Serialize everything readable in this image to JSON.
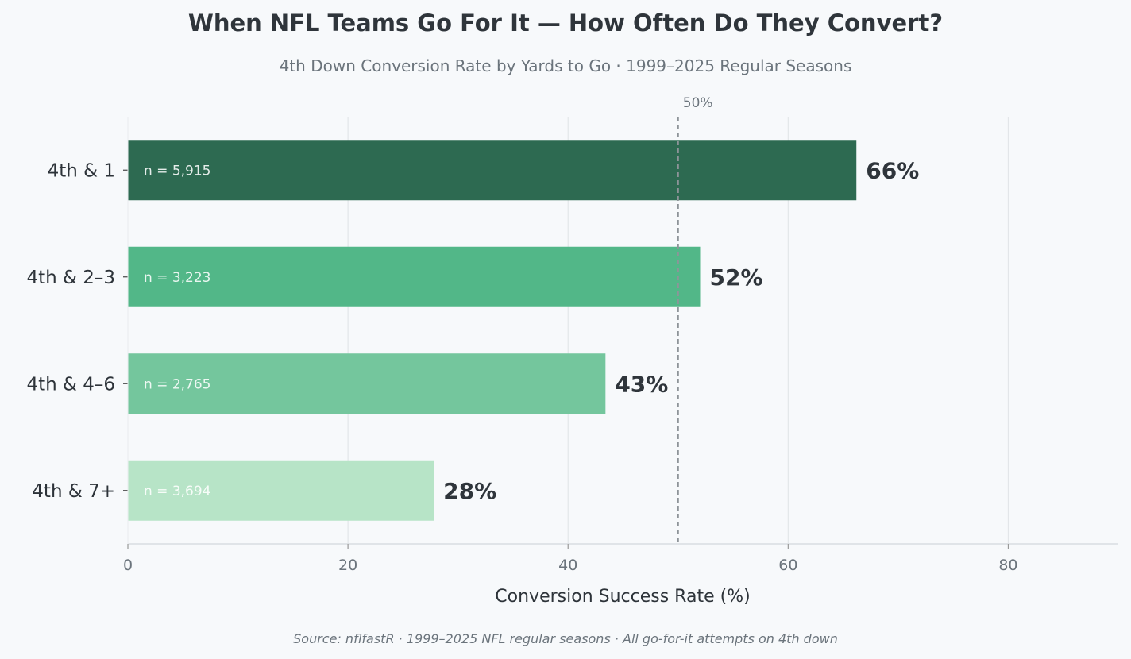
{
  "chart_data": {
    "type": "bar",
    "orientation": "horizontal",
    "title": "When NFL Teams Go For It — How Often Do They Convert?",
    "subtitle": "4th Down Conversion Rate by Yards to Go  ·  1999–2025 Regular Seasons",
    "xlabel": "Conversion Success Rate (%)",
    "ylabel": "",
    "xlim": [
      0,
      90
    ],
    "xticks": [
      0,
      20,
      40,
      60,
      80
    ],
    "grid": "vertical",
    "categories": [
      "4th & 1",
      "4th & 2–3",
      "4th & 4–6",
      "4th & 7+"
    ],
    "values": [
      66.2,
      52.0,
      43.4,
      27.8
    ],
    "value_labels": [
      "66%",
      "52%",
      "43%",
      "28%"
    ],
    "sample_labels": [
      "n = 5,915",
      "n = 3,223",
      "n = 2,765",
      "n = 3,694"
    ],
    "bar_colors": [
      "#2d6a51",
      "#52b788",
      "#74c69d",
      "#b7e4c7"
    ],
    "reference_line": {
      "value": 50,
      "label": "50%"
    },
    "source": "Source: nflfastR · 1999–2025 NFL regular seasons · All go-for-it attempts on 4th down"
  }
}
